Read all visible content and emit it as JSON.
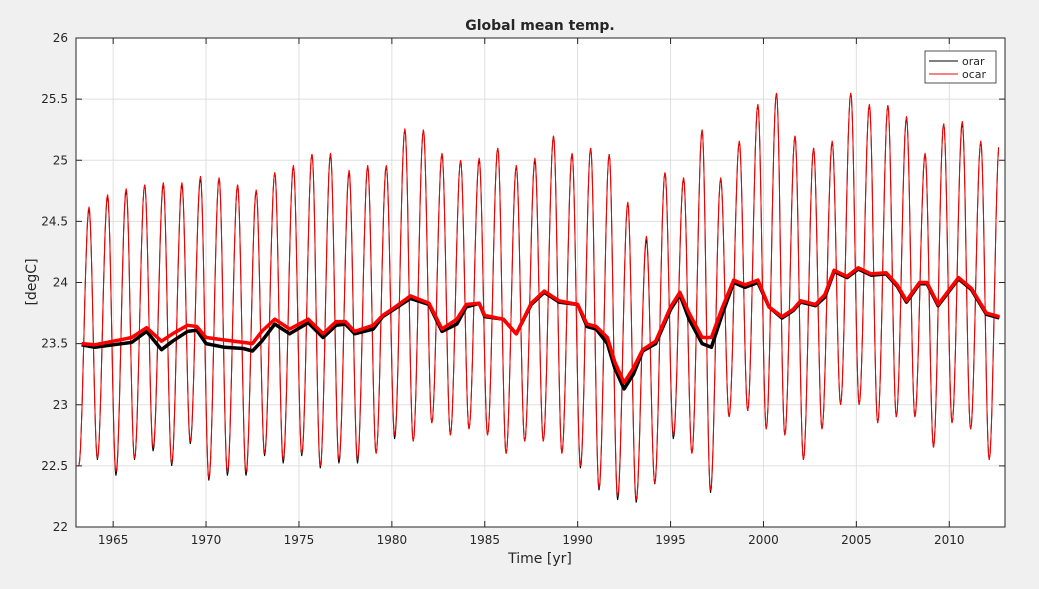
{
  "chart_data": {
    "type": "line",
    "title": "Global mean temp.",
    "xlabel": "Time [yr]",
    "ylabel": "[degC]",
    "xlim": [
      1963,
      2013
    ],
    "ylim": [
      22,
      26
    ],
    "xticks": [
      1965,
      1970,
      1975,
      1980,
      1985,
      1990,
      1995,
      2000,
      2005,
      2010
    ],
    "yticks": [
      22,
      22.5,
      23,
      23.5,
      24,
      24.5,
      25,
      25.5,
      26
    ],
    "ytick_labels": [
      "22",
      "22.5",
      "23",
      "23.5",
      "24",
      "24.5",
      "25",
      "25.5",
      "26"
    ],
    "grid": true,
    "legend": {
      "placement": "top-right",
      "entries": [
        "orar",
        "ocar"
      ]
    },
    "colors": {
      "orar": "#000000",
      "ocar": "#ff0000"
    },
    "years": [
      1963,
      1964,
      1965,
      1966,
      1967,
      1968,
      1969,
      1970,
      1971,
      1972,
      1973,
      1974,
      1975,
      1976,
      1977,
      1978,
      1979,
      1980,
      1981,
      1982,
      1983,
      1984,
      1985,
      1986,
      1987,
      1988,
      1989,
      1990,
      1991,
      1992,
      1993,
      1994,
      1995,
      1996,
      1997,
      1998,
      1999,
      2000,
      2001,
      2002,
      2003,
      2004,
      2005,
      2006,
      2007,
      2008,
      2009,
      2010,
      2011,
      2012
    ],
    "series": [
      {
        "name": "orar",
        "annual_max": [
          24.6,
          24.7,
          24.75,
          24.8,
          24.8,
          24.8,
          24.85,
          24.85,
          24.8,
          24.75,
          24.9,
          24.95,
          25.05,
          25.05,
          24.9,
          24.95,
          24.95,
          25.25,
          25.25,
          25.05,
          25.0,
          25.0,
          25.1,
          24.95,
          25.0,
          25.2,
          25.05,
          25.1,
          25.05,
          24.65,
          24.35,
          24.9,
          24.85,
          25.25,
          24.85,
          25.15,
          25.45,
          25.55,
          25.2,
          25.1,
          25.15,
          25.55,
          25.45,
          25.45,
          25.35,
          25.05,
          25.3,
          25.3,
          25.15,
          25.15
        ],
        "annual_min": [
          22.5,
          22.55,
          22.42,
          22.55,
          22.62,
          22.5,
          22.68,
          22.38,
          22.42,
          22.42,
          22.58,
          22.52,
          22.58,
          22.48,
          22.52,
          22.52,
          22.6,
          22.72,
          22.7,
          22.85,
          22.75,
          22.8,
          22.75,
          22.6,
          22.7,
          22.7,
          22.6,
          22.48,
          22.3,
          22.22,
          22.2,
          22.35,
          22.72,
          22.6,
          22.28,
          22.9,
          22.95,
          22.8,
          22.75,
          22.55,
          22.8,
          23.0,
          23.0,
          22.85,
          22.9,
          22.9,
          22.65,
          22.85,
          22.8,
          22.55
        ],
        "running_mean": {
          "t": [
            1963.3,
            1964,
            1965,
            1966,
            1966.8,
            1967.6,
            1968.2,
            1969,
            1969.5,
            1970,
            1971,
            1972,
            1972.5,
            1973,
            1973.7,
            1974.5,
            1975.5,
            1976.3,
            1977,
            1977.5,
            1978,
            1979,
            1979.5,
            1980,
            1981,
            1982,
            1982.7,
            1983.5,
            1984,
            1984.7,
            1985,
            1986,
            1986.7,
            1987.5,
            1988.2,
            1989,
            1990,
            1990.5,
            1991,
            1991.6,
            1992,
            1992.5,
            1993,
            1993.5,
            1994.2,
            1995,
            1995.5,
            1996,
            1996.7,
            1997.2,
            1997.8,
            1998.4,
            1999,
            1999.7,
            2000.3,
            2001,
            2001.6,
            2002,
            2002.8,
            2003.3,
            2003.8,
            2004.5,
            2005.1,
            2005.8,
            2006.6,
            2007.2,
            2007.7,
            2008.4,
            2008.8,
            2009.4,
            2010.5,
            2011.2,
            2012,
            2012.7
          ],
          "values": [
            23.49,
            23.47,
            23.49,
            23.51,
            23.6,
            23.45,
            23.52,
            23.6,
            23.61,
            23.5,
            23.47,
            23.46,
            23.44,
            23.52,
            23.66,
            23.58,
            23.67,
            23.55,
            23.65,
            23.66,
            23.58,
            23.62,
            23.72,
            23.77,
            23.87,
            23.82,
            23.6,
            23.66,
            23.8,
            23.83,
            23.72,
            23.7,
            23.58,
            23.82,
            23.92,
            23.84,
            23.82,
            23.64,
            23.62,
            23.5,
            23.3,
            23.13,
            23.25,
            23.44,
            23.5,
            23.78,
            23.9,
            23.7,
            23.5,
            23.47,
            23.75,
            24.0,
            23.96,
            24.0,
            23.8,
            23.71,
            23.77,
            23.84,
            23.81,
            23.88,
            24.09,
            24.04,
            24.11,
            24.06,
            24.07,
            23.97,
            23.84,
            23.99,
            23.99,
            23.81,
            24.03,
            23.94,
            23.74,
            23.71
          ]
        }
      },
      {
        "name": "ocar",
        "annual_max": [
          24.62,
          24.72,
          24.77,
          24.8,
          24.82,
          24.82,
          24.87,
          24.86,
          24.8,
          24.76,
          24.9,
          24.96,
          25.05,
          25.06,
          24.92,
          24.96,
          24.96,
          25.26,
          25.25,
          25.06,
          25.0,
          25.02,
          25.1,
          24.96,
          25.02,
          25.2,
          25.06,
          25.1,
          25.05,
          24.66,
          24.38,
          24.9,
          24.86,
          25.25,
          24.86,
          25.16,
          25.46,
          25.55,
          25.2,
          25.1,
          25.16,
          25.55,
          25.46,
          25.45,
          25.36,
          25.06,
          25.3,
          25.32,
          25.16,
          25.15
        ],
        "annual_min": [
          22.5,
          22.56,
          22.45,
          22.56,
          22.65,
          22.52,
          22.7,
          22.4,
          22.45,
          22.45,
          22.6,
          22.55,
          22.6,
          22.5,
          22.55,
          22.55,
          22.6,
          22.75,
          22.7,
          22.85,
          22.75,
          22.8,
          22.75,
          22.6,
          22.7,
          22.7,
          22.6,
          22.5,
          22.32,
          22.25,
          22.22,
          22.36,
          22.75,
          22.6,
          22.3,
          22.9,
          22.95,
          22.8,
          22.75,
          22.55,
          22.8,
          23.0,
          23.0,
          22.85,
          22.9,
          22.9,
          22.65,
          22.85,
          22.8,
          22.55
        ],
        "running_mean": {
          "t": [
            1963.3,
            1964,
            1965,
            1966,
            1966.8,
            1967.6,
            1968.2,
            1969,
            1969.5,
            1970,
            1971,
            1972,
            1972.5,
            1973,
            1973.7,
            1974.5,
            1975.5,
            1976.3,
            1977,
            1977.5,
            1978,
            1979,
            1979.5,
            1980,
            1981,
            1982,
            1982.7,
            1983.5,
            1984,
            1984.7,
            1985,
            1986,
            1986.7,
            1987.5,
            1988.2,
            1989,
            1990,
            1990.5,
            1991,
            1991.6,
            1992,
            1992.5,
            1993,
            1993.5,
            1994.2,
            1995,
            1995.5,
            1996,
            1996.7,
            1997.2,
            1997.8,
            1998.4,
            1999,
            1999.7,
            2000.3,
            2001,
            2001.6,
            2002,
            2002.8,
            2003.3,
            2003.8,
            2004.5,
            2005.1,
            2005.8,
            2006.6,
            2007.2,
            2007.7,
            2008.4,
            2008.8,
            2009.4,
            2010.5,
            2011.2,
            2012,
            2012.7
          ],
          "values": [
            23.5,
            23.49,
            23.52,
            23.55,
            23.63,
            23.52,
            23.58,
            23.65,
            23.64,
            23.55,
            23.53,
            23.51,
            23.5,
            23.6,
            23.7,
            23.62,
            23.7,
            23.58,
            23.68,
            23.68,
            23.6,
            23.65,
            23.73,
            23.78,
            23.89,
            23.83,
            23.62,
            23.7,
            23.82,
            23.83,
            23.73,
            23.7,
            23.58,
            23.83,
            23.93,
            23.85,
            23.82,
            23.66,
            23.64,
            23.55,
            23.35,
            23.18,
            23.3,
            23.45,
            23.52,
            23.8,
            23.92,
            23.75,
            23.55,
            23.55,
            23.8,
            24.02,
            23.98,
            24.02,
            23.8,
            23.72,
            23.78,
            23.85,
            23.82,
            23.9,
            24.1,
            24.05,
            24.12,
            24.07,
            24.08,
            23.98,
            23.85,
            24.0,
            24.0,
            23.82,
            24.04,
            23.95,
            23.75,
            23.72
          ]
        }
      }
    ]
  }
}
